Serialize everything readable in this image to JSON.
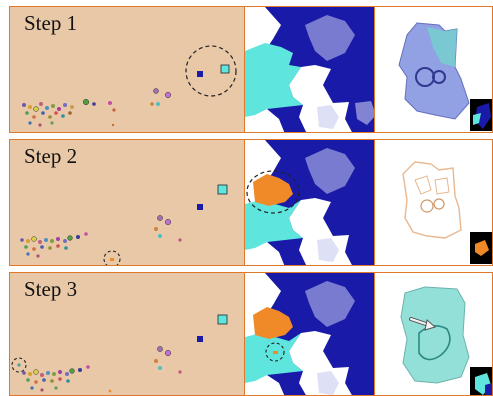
{
  "steps": [
    {
      "label": "Step 1"
    },
    {
      "label": "Step 2"
    },
    {
      "label": "Step 3"
    }
  ],
  "colors": {
    "panel_border": "#e0782b",
    "feature_bg": "#e9c8a8",
    "cluster_dark_blue": "#1a1aa8",
    "cluster_cyan": "#5ee6de",
    "cluster_orange": "#f08a28",
    "mesh_blue": "#8090e0",
    "mesh_teal": "#70d6cc",
    "mesh_tan": "#e8b890"
  },
  "icons": {
    "circle_marker": "dashed-circle-icon",
    "arrow": "arrow-icon"
  }
}
